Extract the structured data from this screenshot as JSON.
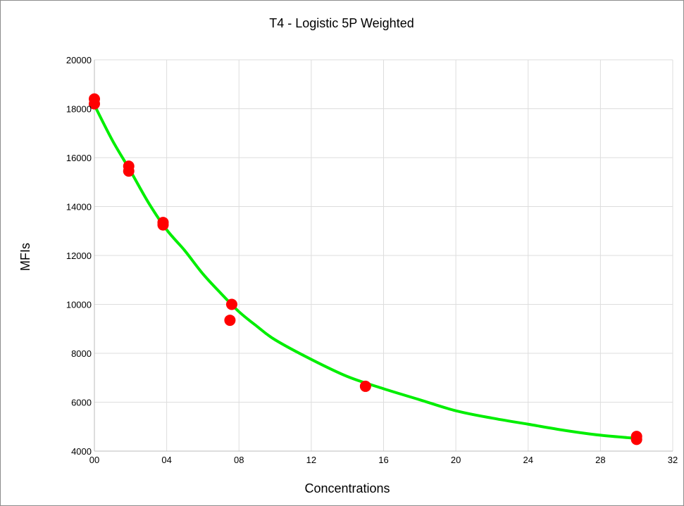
{
  "chart_data": {
    "type": "scatter",
    "title": "T4 - Logistic 5P Weighted",
    "xlabel": "Concentrations",
    "ylabel": "MFIs",
    "xlim": [
      0,
      32
    ],
    "ylim": [
      4000,
      20000
    ],
    "x_ticks": [
      0,
      4,
      8,
      12,
      16,
      20,
      24,
      28,
      32
    ],
    "x_tick_labels": [
      "00",
      "04",
      "08",
      "12",
      "16",
      "20",
      "24",
      "28",
      "32"
    ],
    "y_ticks": [
      4000,
      6000,
      8000,
      10000,
      12000,
      14000,
      16000,
      18000,
      20000
    ],
    "y_tick_labels": [
      "4000",
      "6000",
      "8000",
      "10000",
      "12000",
      "14000",
      "16000",
      "18000",
      "20000"
    ],
    "grid": true,
    "series": [
      {
        "kind": "points",
        "color": "#ff0000",
        "points": [
          {
            "x": 0.0,
            "y": 18400
          },
          {
            "x": 0.0,
            "y": 18200
          },
          {
            "x": 1.9,
            "y": 15650
          },
          {
            "x": 1.9,
            "y": 15450
          },
          {
            "x": 3.8,
            "y": 13350
          },
          {
            "x": 3.8,
            "y": 13250
          },
          {
            "x": 7.6,
            "y": 10000
          },
          {
            "x": 7.5,
            "y": 9350
          },
          {
            "x": 15.0,
            "y": 6650
          },
          {
            "x": 30.0,
            "y": 4600
          },
          {
            "x": 30.0,
            "y": 4480
          }
        ]
      },
      {
        "kind": "fit-curve",
        "color": "#00ee00",
        "x": [
          0,
          1,
          2,
          3,
          4,
          5,
          6,
          7,
          8,
          9,
          10,
          12,
          14,
          16,
          18,
          20,
          22,
          24,
          26,
          28,
          30
        ],
        "y": [
          18150,
          16700,
          15450,
          14150,
          13050,
          12200,
          11250,
          10450,
          9700,
          9100,
          8550,
          7750,
          7050,
          6550,
          6100,
          5650,
          5350,
          5100,
          4850,
          4650,
          4520
        ]
      }
    ]
  }
}
